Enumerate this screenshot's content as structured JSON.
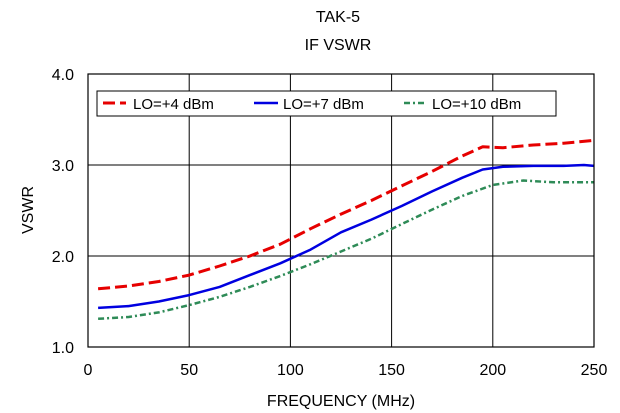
{
  "chart_data": {
    "type": "line",
    "title": "TAK-5",
    "subtitle": "IF VSWR",
    "xlabel": "FREQUENCY (MHz)",
    "ylabel": "VSWR",
    "xlim": [
      0,
      250
    ],
    "ylim": [
      1.0,
      4.0
    ],
    "xticks": [
      0,
      50,
      100,
      150,
      200,
      250
    ],
    "xtick_labels": [
      "0",
      "50",
      "100",
      "150",
      "200",
      "250"
    ],
    "yticks": [
      1.0,
      2.0,
      3.0,
      4.0
    ],
    "ytick_labels": [
      "1.0",
      "2.0",
      "3.0",
      "4.0"
    ],
    "grid": true,
    "legend_position": "top",
    "series": [
      {
        "name": "LO=+4 dBm",
        "color": "#e60000",
        "dash": "long-dash",
        "x": [
          5,
          20,
          35,
          50,
          65,
          80,
          95,
          110,
          125,
          140,
          155,
          170,
          185,
          195,
          205,
          220,
          235,
          250
        ],
        "y": [
          1.64,
          1.67,
          1.72,
          1.79,
          1.89,
          2.0,
          2.13,
          2.3,
          2.46,
          2.61,
          2.77,
          2.93,
          3.1,
          3.2,
          3.19,
          3.22,
          3.24,
          3.27
        ]
      },
      {
        "name": "LO=+7 dBm",
        "color": "#0000e0",
        "dash": "solid",
        "x": [
          5,
          20,
          35,
          50,
          65,
          80,
          95,
          110,
          125,
          140,
          155,
          170,
          185,
          195,
          205,
          220,
          235,
          245,
          250
        ],
        "y": [
          1.43,
          1.45,
          1.5,
          1.57,
          1.66,
          1.79,
          1.92,
          2.07,
          2.26,
          2.4,
          2.55,
          2.71,
          2.86,
          2.95,
          2.98,
          2.99,
          2.99,
          3.0,
          2.99
        ]
      },
      {
        "name": "LO=+10 dBm",
        "color": "#2e8b57",
        "dash": "dot-dash",
        "x": [
          5,
          20,
          35,
          50,
          65,
          80,
          95,
          110,
          125,
          140,
          155,
          170,
          185,
          200,
          215,
          230,
          250
        ],
        "y": [
          1.31,
          1.33,
          1.38,
          1.46,
          1.55,
          1.66,
          1.78,
          1.91,
          2.05,
          2.19,
          2.35,
          2.51,
          2.66,
          2.78,
          2.83,
          2.81,
          2.81
        ]
      }
    ]
  }
}
